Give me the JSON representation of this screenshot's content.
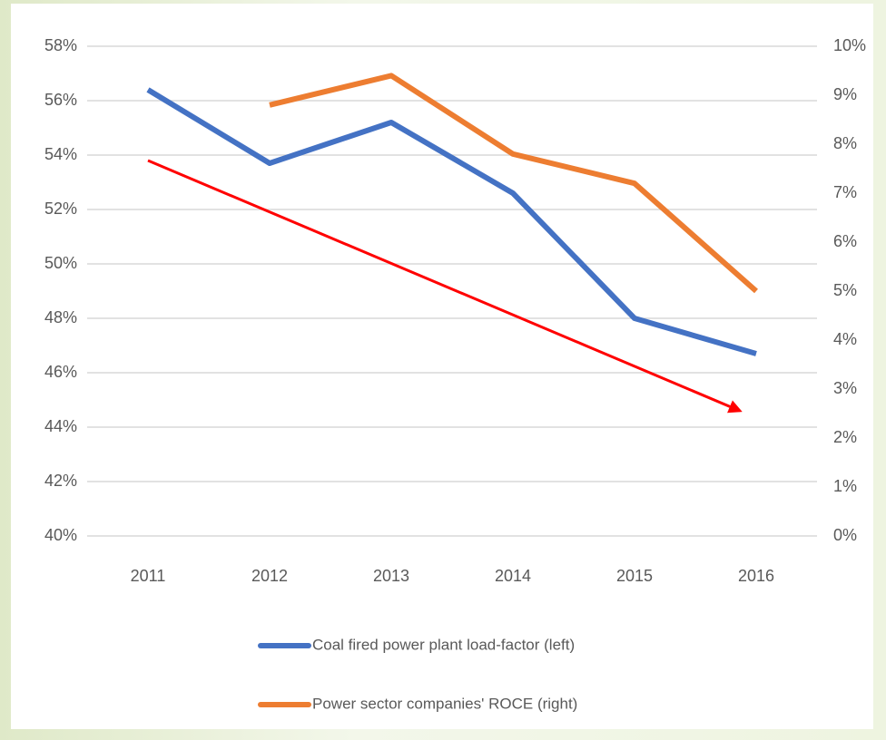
{
  "chart_data": {
    "type": "line",
    "categories": [
      "2011",
      "2012",
      "2013",
      "2014",
      "2015",
      "2016"
    ],
    "series": [
      {
        "name": "Coal fired power plant load-factor (left)",
        "color": "#4472c4",
        "values": [
          56.4,
          53.7,
          55.2,
          52.6,
          48.0,
          46.7
        ]
      },
      {
        "name": "Power sector companies' ROCE (right)",
        "color": "#ed7d31",
        "axis": "y2",
        "values": [
          null,
          8.8,
          9.4,
          7.8,
          7.2,
          5.0
        ]
      }
    ],
    "ylim": [
      40,
      58
    ],
    "yticks": [
      {
        "value": 40,
        "label": "40%"
      },
      {
        "value": 42,
        "label": "42%"
      },
      {
        "value": 44,
        "label": "44%"
      },
      {
        "value": 46,
        "label": "46%"
      },
      {
        "value": 48,
        "label": "48%"
      },
      {
        "value": 50,
        "label": "50%"
      },
      {
        "value": 52,
        "label": "52%"
      },
      {
        "value": 54,
        "label": "54%"
      },
      {
        "value": 56,
        "label": "56%"
      },
      {
        "value": 58,
        "label": "58%"
      }
    ],
    "y2lim": [
      0,
      10
    ],
    "y2ticks": [
      {
        "value": 0,
        "label": "0%"
      },
      {
        "value": 1,
        "label": "1%"
      },
      {
        "value": 2,
        "label": "2%"
      },
      {
        "value": 3,
        "label": "3%"
      },
      {
        "value": 4,
        "label": "4%"
      },
      {
        "value": 5,
        "label": "5%"
      },
      {
        "value": 6,
        "label": "6%"
      },
      {
        "value": 7,
        "label": "7%"
      },
      {
        "value": 8,
        "label": "8%"
      },
      {
        "value": 9,
        "label": "9%"
      },
      {
        "value": 10,
        "label": "10%"
      }
    ],
    "grid": true,
    "legend": "bottom"
  }
}
